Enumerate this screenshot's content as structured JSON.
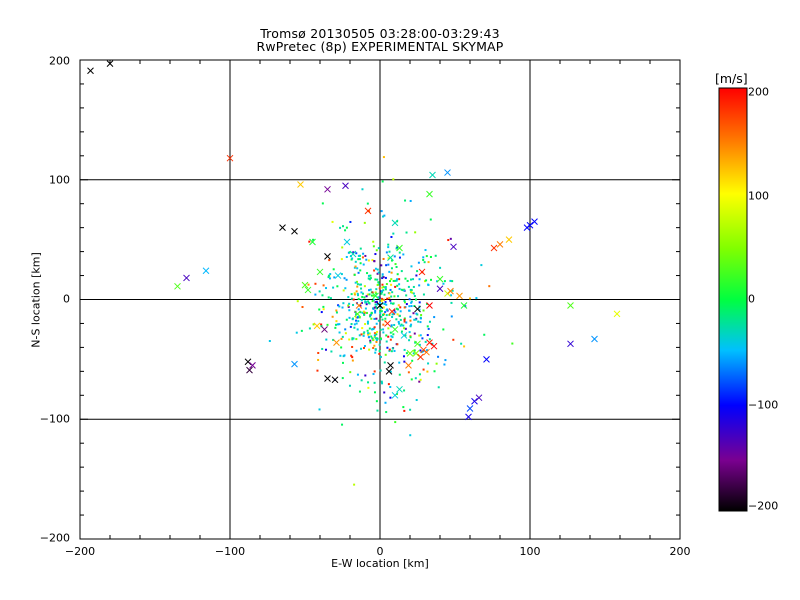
{
  "title_line1": "Tromsø 20130505 03:28:00-03:29:43",
  "title_line2": "RwPretec (8p) EXPERIMENTAL SKYMAP",
  "colorbar": {
    "label": "[m/s]",
    "ticks": [
      "200",
      "100",
      "0",
      "−100",
      "−200"
    ],
    "tick_values": [
      200,
      100,
      0,
      -100,
      -200
    ],
    "range": [
      -200,
      200
    ],
    "colors": [
      "#000000",
      "#800080",
      "#0000ff",
      "#00ffff",
      "#00ff00",
      "#ffff00",
      "#ff8000",
      "#ff0000"
    ]
  },
  "chart_data": {
    "type": "scatter",
    "title": "Tromsø 20130505 03:28:00-03:29:43 RwPretec (8p) EXPERIMENTAL SKYMAP",
    "xlabel": "E-W location [km]",
    "ylabel": "N-S location [km]",
    "xlim": [
      -200,
      200
    ],
    "ylim": [
      -200,
      200
    ],
    "x_tick_labels": [
      "−200",
      "−100",
      "0",
      "100",
      "200"
    ],
    "y_tick_labels": [
      "200",
      "100",
      "0",
      "−100",
      "−200"
    ],
    "x_ticks": [
      -200,
      -100,
      0,
      100,
      200
    ],
    "y_ticks": [
      200,
      100,
      0,
      -100,
      -200
    ],
    "grid": true,
    "color_variable": "velocity [m/s]",
    "crosses": [
      {
        "x": -193,
        "y": 191,
        "v": -200
      },
      {
        "x": -180,
        "y": 197,
        "v": -200
      },
      {
        "x": -100,
        "y": 118,
        "v": 180
      },
      {
        "x": -53,
        "y": 96,
        "v": 120
      },
      {
        "x": -35,
        "y": 92,
        "v": -150
      },
      {
        "x": -23,
        "y": 95,
        "v": -130
      },
      {
        "x": -65,
        "y": 60,
        "v": -200
      },
      {
        "x": -57,
        "y": 57,
        "v": -200
      },
      {
        "x": -45,
        "y": 48,
        "v": 10
      },
      {
        "x": -35,
        "y": 36,
        "v": -200
      },
      {
        "x": -22,
        "y": 48,
        "v": -40
      },
      {
        "x": -28,
        "y": 20,
        "v": -40
      },
      {
        "x": -48,
        "y": 8,
        "v": 20
      },
      {
        "x": -50,
        "y": 12,
        "v": 30
      },
      {
        "x": -40,
        "y": 23,
        "v": 20
      },
      {
        "x": -8,
        "y": 74,
        "v": 180
      },
      {
        "x": 10,
        "y": 64,
        "v": -30
      },
      {
        "x": 35,
        "y": 104,
        "v": -30
      },
      {
        "x": 45,
        "y": 106,
        "v": -60
      },
      {
        "x": 33,
        "y": 88,
        "v": 20
      },
      {
        "x": 49,
        "y": 44,
        "v": -130
      },
      {
        "x": 28,
        "y": 23,
        "v": 190
      },
      {
        "x": 40,
        "y": 17,
        "v": 20
      },
      {
        "x": 40,
        "y": 9,
        "v": -130
      },
      {
        "x": 45,
        "y": 5,
        "v": 80
      },
      {
        "x": 47,
        "y": 7,
        "v": 150
      },
      {
        "x": 56,
        "y": -5,
        "v": 10
      },
      {
        "x": 53,
        "y": 3,
        "v": 140
      },
      {
        "x": 33,
        "y": -5,
        "v": 200
      },
      {
        "x": 25,
        "y": -8,
        "v": -200
      },
      {
        "x": 76,
        "y": 43,
        "v": 180
      },
      {
        "x": 80,
        "y": 46,
        "v": 150
      },
      {
        "x": 86,
        "y": 50,
        "v": 120
      },
      {
        "x": 98,
        "y": 60,
        "v": -100
      },
      {
        "x": 100,
        "y": 62,
        "v": -100
      },
      {
        "x": 103,
        "y": 65,
        "v": -100
      },
      {
        "x": 127,
        "y": -5,
        "v": 30
      },
      {
        "x": 158,
        "y": -12,
        "v": 90
      },
      {
        "x": 127,
        "y": -37,
        "v": -120
      },
      {
        "x": 143,
        "y": -33,
        "v": -60
      },
      {
        "x": 71,
        "y": -50,
        "v": -100
      },
      {
        "x": 63,
        "y": -85,
        "v": -110
      },
      {
        "x": 66,
        "y": -82,
        "v": -130
      },
      {
        "x": 59,
        "y": -98,
        "v": -110
      },
      {
        "x": 60,
        "y": -91,
        "v": -80
      },
      {
        "x": -129,
        "y": 18,
        "v": -130
      },
      {
        "x": -135,
        "y": 11,
        "v": 30
      },
      {
        "x": -116,
        "y": 24,
        "v": -50
      },
      {
        "x": -88,
        "y": -52,
        "v": -200
      },
      {
        "x": -85,
        "y": -55,
        "v": -150
      },
      {
        "x": -87,
        "y": -59,
        "v": -180
      },
      {
        "x": -57,
        "y": -54,
        "v": -60
      },
      {
        "x": -37,
        "y": -25,
        "v": -160
      },
      {
        "x": -42,
        "y": -22,
        "v": 120
      },
      {
        "x": -29,
        "y": -36,
        "v": 140
      },
      {
        "x": -35,
        "y": -66,
        "v": -200
      },
      {
        "x": -30,
        "y": -67,
        "v": -200
      },
      {
        "x": -14,
        "y": -5,
        "v": 150
      },
      {
        "x": -15,
        "y": -12,
        "v": 30
      },
      {
        "x": 7,
        "y": -55,
        "v": -200
      },
      {
        "x": 6,
        "y": -60,
        "v": -200
      },
      {
        "x": 13,
        "y": -75,
        "v": -30
      },
      {
        "x": 10,
        "y": -80,
        "v": -40
      },
      {
        "x": 24,
        "y": -45,
        "v": 50
      },
      {
        "x": 27,
        "y": -48,
        "v": 180
      },
      {
        "x": 33,
        "y": -36,
        "v": 190
      },
      {
        "x": 36,
        "y": -39,
        "v": 200
      },
      {
        "x": 31,
        "y": -44,
        "v": 150
      },
      {
        "x": 20,
        "y": -45,
        "v": 40
      },
      {
        "x": 29,
        "y": -42,
        "v": 170
      },
      {
        "x": 10,
        "y": -25,
        "v": 20
      },
      {
        "x": 16,
        "y": -30,
        "v": -40
      },
      {
        "x": 8,
        "y": -10,
        "v": 180
      },
      {
        "x": 5,
        "y": -20,
        "v": 190
      },
      {
        "x": 0,
        "y": -5,
        "v": -200
      },
      {
        "x": -3,
        "y": 3,
        "v": 10
      },
      {
        "x": 7,
        "y": 35,
        "v": -20
      },
      {
        "x": 13,
        "y": 43,
        "v": 20
      },
      {
        "x": -18,
        "y": 38,
        "v": -30
      },
      {
        "x": 25,
        "y": -37,
        "v": 30
      },
      {
        "x": 19,
        "y": -55,
        "v": 150
      }
    ],
    "dense_cluster": {
      "center_x": 0,
      "center_y": -10,
      "spread_x": 18,
      "spread_y": 28,
      "velocity_range": [
        -150,
        200
      ]
    },
    "dots_sample_note": "small dot points scattered mainly within |x|<40, |y|<80"
  }
}
